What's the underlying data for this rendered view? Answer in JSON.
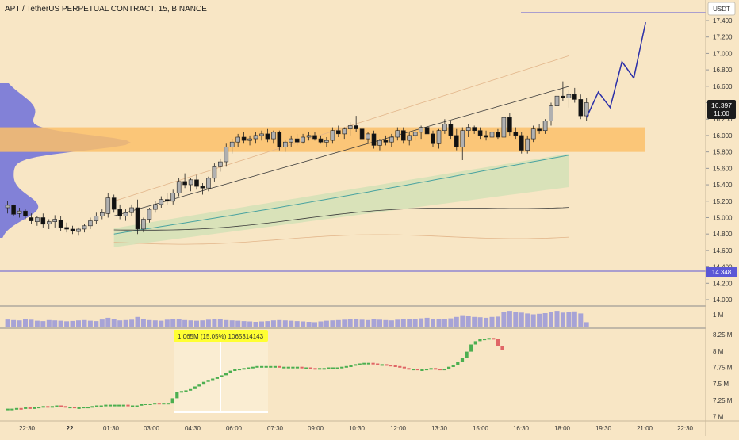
{
  "header": {
    "symbol_title": "APT / TetherUS PERPETUAL CONTRACT, 15, BINANCE",
    "currency": "USDT"
  },
  "price_axis": {
    "ticks": [
      "17.400",
      "17.200",
      "17.000",
      "16.800",
      "16.600",
      "16.400",
      "16.200",
      "16.000",
      "15.800",
      "15.600",
      "15.400",
      "15.200",
      "15.000",
      "14.800",
      "14.600",
      "14.400",
      "14.200",
      "14.000"
    ],
    "last_price": "16.397",
    "countdown": "11:00",
    "level_label": "14.348"
  },
  "volume_axis": {
    "ticks": [
      "1 M"
    ]
  },
  "indicator_axis": {
    "ticks": [
      "8.25 M",
      "8 M",
      "7.75 M",
      "7.5 M",
      "7.25 M",
      "7 M"
    ]
  },
  "time_axis": {
    "labels": [
      "22:30",
      "22",
      "01:30",
      "03:00",
      "04:30",
      "06:00",
      "07:30",
      "09:00",
      "10:30",
      "12:00",
      "13:30",
      "15:00",
      "16:30",
      "18:00",
      "19:30",
      "21:00",
      "22:30"
    ]
  },
  "measure_tooltip": {
    "text": "1.065M (15.05%) 1065314143"
  },
  "colors": {
    "background": "#f8e6c5",
    "up_candle": "#b0b0b0",
    "down_candle": "#111111",
    "value_area_band": "#fbbf6a",
    "projection": "#2b2fa8",
    "level_line": "#5b57d6",
    "volume_bar": "#a7a3d6",
    "indicator_up": "#4caf50",
    "indicator_down": "#e06666",
    "tooltip_bg": "#ffff33",
    "vwap": "#4aa3a0",
    "band_fill": "#cfe0b4"
  },
  "chart_data": [
    {
      "type": "candlestick",
      "title": "APT / TetherUS PERPETUAL CONTRACT, 15, BINANCE",
      "ylabel": "USDT",
      "ylim": [
        13.9,
        17.6
      ],
      "x_start": "2023-06-21 21:30",
      "interval_minutes": 15,
      "ohlc": [
        [
          15.12,
          15.2,
          15.05,
          15.15
        ],
        [
          15.15,
          15.16,
          15.02,
          15.04
        ],
        [
          15.05,
          15.12,
          15.0,
          15.08
        ],
        [
          15.08,
          15.1,
          14.98,
          15.02
        ],
        [
          15.0,
          15.05,
          14.92,
          14.96
        ],
        [
          14.95,
          15.02,
          14.9,
          15.0
        ],
        [
          15.0,
          15.05,
          14.88,
          14.92
        ],
        [
          14.92,
          14.98,
          14.86,
          14.95
        ],
        [
          14.95,
          15.03,
          14.88,
          14.98
        ],
        [
          14.97,
          15.02,
          14.84,
          14.88
        ],
        [
          14.88,
          14.94,
          14.82,
          14.86
        ],
        [
          14.86,
          14.9,
          14.8,
          14.84
        ],
        [
          14.83,
          14.88,
          14.78,
          14.86
        ],
        [
          14.86,
          14.92,
          14.82,
          14.9
        ],
        [
          14.9,
          15.0,
          14.86,
          14.96
        ],
        [
          14.96,
          15.06,
          14.92,
          15.02
        ],
        [
          15.02,
          15.1,
          14.98,
          15.06
        ],
        [
          15.05,
          15.3,
          15.0,
          15.24
        ],
        [
          15.24,
          15.28,
          15.06,
          15.1
        ],
        [
          15.1,
          15.16,
          14.98,
          15.02
        ],
        [
          15.02,
          15.1,
          14.96,
          15.06
        ],
        [
          15.06,
          15.16,
          15.02,
          15.12
        ],
        [
          15.12,
          15.22,
          14.8,
          14.86
        ],
        [
          14.86,
          15.0,
          14.82,
          14.98
        ],
        [
          14.98,
          15.12,
          14.94,
          15.1
        ],
        [
          15.1,
          15.2,
          15.06,
          15.16
        ],
        [
          15.16,
          15.26,
          15.12,
          15.22
        ],
        [
          15.22,
          15.3,
          15.16,
          15.2
        ],
        [
          15.2,
          15.34,
          15.16,
          15.3
        ],
        [
          15.3,
          15.48,
          15.26,
          15.44
        ],
        [
          15.44,
          15.54,
          15.36,
          15.4
        ],
        [
          15.4,
          15.48,
          15.32,
          15.46
        ],
        [
          15.46,
          15.52,
          15.34,
          15.38
        ],
        [
          15.38,
          15.42,
          15.28,
          15.36
        ],
        [
          15.36,
          15.5,
          15.32,
          15.48
        ],
        [
          15.48,
          15.66,
          15.44,
          15.62
        ],
        [
          15.62,
          15.72,
          15.56,
          15.68
        ],
        [
          15.68,
          15.9,
          15.62,
          15.86
        ],
        [
          15.86,
          15.96,
          15.78,
          15.92
        ],
        [
          15.92,
          16.02,
          15.86,
          15.98
        ],
        [
          15.98,
          16.04,
          15.9,
          15.94
        ],
        [
          15.94,
          16.0,
          15.88,
          15.96
        ],
        [
          15.96,
          16.04,
          15.9,
          16.0
        ],
        [
          16.0,
          16.06,
          15.94,
          16.02
        ],
        [
          16.02,
          16.08,
          15.92,
          15.96
        ],
        [
          15.96,
          16.06,
          15.9,
          16.04
        ],
        [
          16.04,
          16.06,
          15.82,
          15.86
        ],
        [
          15.86,
          15.94,
          15.8,
          15.92
        ],
        [
          15.92,
          16.0,
          15.86,
          15.96
        ],
        [
          15.96,
          16.02,
          15.88,
          15.92
        ],
        [
          15.92,
          16.02,
          15.9,
          15.98
        ],
        [
          15.98,
          16.04,
          15.94,
          16.0
        ],
        [
          16.0,
          16.04,
          15.94,
          15.96
        ],
        [
          15.96,
          16.0,
          15.9,
          15.92
        ],
        [
          15.92,
          15.98,
          15.86,
          15.94
        ],
        [
          15.94,
          16.1,
          15.9,
          16.06
        ],
        [
          16.06,
          16.12,
          15.98,
          16.02
        ],
        [
          16.02,
          16.1,
          15.96,
          16.08
        ],
        [
          16.08,
          16.16,
          16.0,
          16.12
        ],
        [
          16.12,
          16.24,
          16.04,
          16.08
        ],
        [
          16.08,
          16.12,
          15.92,
          15.96
        ],
        [
          15.96,
          16.04,
          15.9,
          16.02
        ],
        [
          16.02,
          16.06,
          15.84,
          15.88
        ],
        [
          15.88,
          15.96,
          15.82,
          15.94
        ],
        [
          15.94,
          16.0,
          15.88,
          15.92
        ],
        [
          15.92,
          16.02,
          15.86,
          15.98
        ],
        [
          15.98,
          16.1,
          15.94,
          16.06
        ],
        [
          16.06,
          16.1,
          15.9,
          15.94
        ],
        [
          15.94,
          16.04,
          15.88,
          16.0
        ],
        [
          16.0,
          16.08,
          15.94,
          16.04
        ],
        [
          16.04,
          16.12,
          15.96,
          16.1
        ],
        [
          16.1,
          16.16,
          16.0,
          16.02
        ],
        [
          16.02,
          16.06,
          15.86,
          15.9
        ],
        [
          15.9,
          16.08,
          15.84,
          16.06
        ],
        [
          16.06,
          16.2,
          16.02,
          16.14
        ],
        [
          16.14,
          16.18,
          15.96,
          16.0
        ],
        [
          16.0,
          16.08,
          15.82,
          15.86
        ],
        [
          15.86,
          16.1,
          15.7,
          16.06
        ],
        [
          16.06,
          16.14,
          15.98,
          16.1
        ],
        [
          16.1,
          16.12,
          16.02,
          16.06
        ],
        [
          16.06,
          16.1,
          15.96,
          16.0
        ],
        [
          16.0,
          16.06,
          15.94,
          15.98
        ],
        [
          15.98,
          16.06,
          15.92,
          16.04
        ],
        [
          16.04,
          16.08,
          15.96,
          15.98
        ],
        [
          15.98,
          16.26,
          15.94,
          16.22
        ],
        [
          16.22,
          16.28,
          16.0,
          16.04
        ],
        [
          16.04,
          16.1,
          15.96,
          16.0
        ],
        [
          16.0,
          16.04,
          15.78,
          15.82
        ],
        [
          15.82,
          16.0,
          15.78,
          15.96
        ],
        [
          15.96,
          16.12,
          15.92,
          16.08
        ],
        [
          16.08,
          16.14,
          16.02,
          16.06
        ],
        [
          16.06,
          16.2,
          16.02,
          16.18
        ],
        [
          16.18,
          16.4,
          16.12,
          16.36
        ],
        [
          16.36,
          16.52,
          16.3,
          16.48
        ],
        [
          16.48,
          16.66,
          16.42,
          16.46
        ],
        [
          16.46,
          16.56,
          16.34,
          16.5
        ],
        [
          16.5,
          16.58,
          16.4,
          16.44
        ],
        [
          16.44,
          16.5,
          16.2,
          16.24
        ],
        [
          16.24,
          16.46,
          16.18,
          16.4
        ]
      ]
    },
    {
      "type": "line",
      "name": "projection",
      "ylim": [
        13.9,
        17.6
      ],
      "points": [
        [
          98,
          16.22
        ],
        [
          100,
          16.53
        ],
        [
          102,
          16.34
        ],
        [
          104,
          16.9
        ],
        [
          106,
          16.7
        ],
        [
          108,
          17.38
        ]
      ]
    },
    {
      "type": "bar",
      "name": "volume",
      "scale_label": "1 M",
      "values": [
        0.45,
        0.42,
        0.4,
        0.48,
        0.44,
        0.38,
        0.36,
        0.42,
        0.4,
        0.38,
        0.35,
        0.37,
        0.4,
        0.42,
        0.38,
        0.36,
        0.45,
        0.55,
        0.48,
        0.4,
        0.42,
        0.44,
        0.6,
        0.48,
        0.42,
        0.4,
        0.38,
        0.44,
        0.48,
        0.46,
        0.42,
        0.4,
        0.38,
        0.4,
        0.44,
        0.5,
        0.46,
        0.42,
        0.4,
        0.38,
        0.36,
        0.34,
        0.32,
        0.34,
        0.36,
        0.4,
        0.42,
        0.4,
        0.38,
        0.36,
        0.34,
        0.32,
        0.3,
        0.34,
        0.38,
        0.4,
        0.42,
        0.44,
        0.46,
        0.48,
        0.44,
        0.42,
        0.46,
        0.44,
        0.42,
        0.4,
        0.44,
        0.46,
        0.48,
        0.5,
        0.52,
        0.55,
        0.5,
        0.48,
        0.5,
        0.52,
        0.6,
        0.7,
        0.65,
        0.6,
        0.58,
        0.55,
        0.6,
        0.62,
        0.9,
        0.95,
        0.88,
        0.85,
        0.8,
        0.75,
        0.78,
        0.82,
        0.9,
        0.95,
        0.85,
        0.88,
        0.92,
        0.8,
        0.3
      ]
    },
    {
      "type": "line",
      "name": "cumulative volume delta",
      "ylim": [
        6.95,
        8.35
      ],
      "values": [
        7.12,
        7.12,
        7.12,
        7.13,
        7.12,
        7.14,
        7.13,
        7.14,
        7.15,
        7.16,
        7.15,
        7.16,
        7.17,
        7.16,
        7.15,
        7.15,
        7.14,
        7.14,
        7.15,
        7.15,
        7.16,
        7.17,
        7.17,
        7.18,
        7.18,
        7.18,
        7.18,
        7.18,
        7.17,
        7.17,
        7.17,
        7.19,
        7.2,
        7.2,
        7.21,
        7.2,
        7.21,
        7.21,
        7.28,
        7.38,
        7.39,
        7.4,
        7.42,
        7.46,
        7.5,
        7.53,
        7.56,
        7.58,
        7.6,
        7.63,
        7.66,
        7.7,
        7.72,
        7.73,
        7.74,
        7.75,
        7.76,
        7.77,
        7.77,
        7.77,
        7.77,
        7.77,
        7.76,
        7.76,
        7.76,
        7.76,
        7.76,
        7.75,
        7.75,
        7.74,
        7.73,
        7.74,
        7.74,
        7.75,
        7.75,
        7.75,
        7.76,
        7.77,
        7.78,
        7.8,
        7.81,
        7.82,
        7.82,
        7.81,
        7.8,
        7.8,
        7.79,
        7.78,
        7.77,
        7.76,
        7.74,
        7.73,
        7.73,
        7.72,
        7.72,
        7.73,
        7.74,
        7.73,
        7.72,
        7.73,
        7.76,
        7.78,
        7.84,
        7.9,
        7.99,
        8.1,
        8.15,
        8.18,
        8.19,
        8.2,
        8.19,
        8.08,
        8.02
      ]
    }
  ]
}
